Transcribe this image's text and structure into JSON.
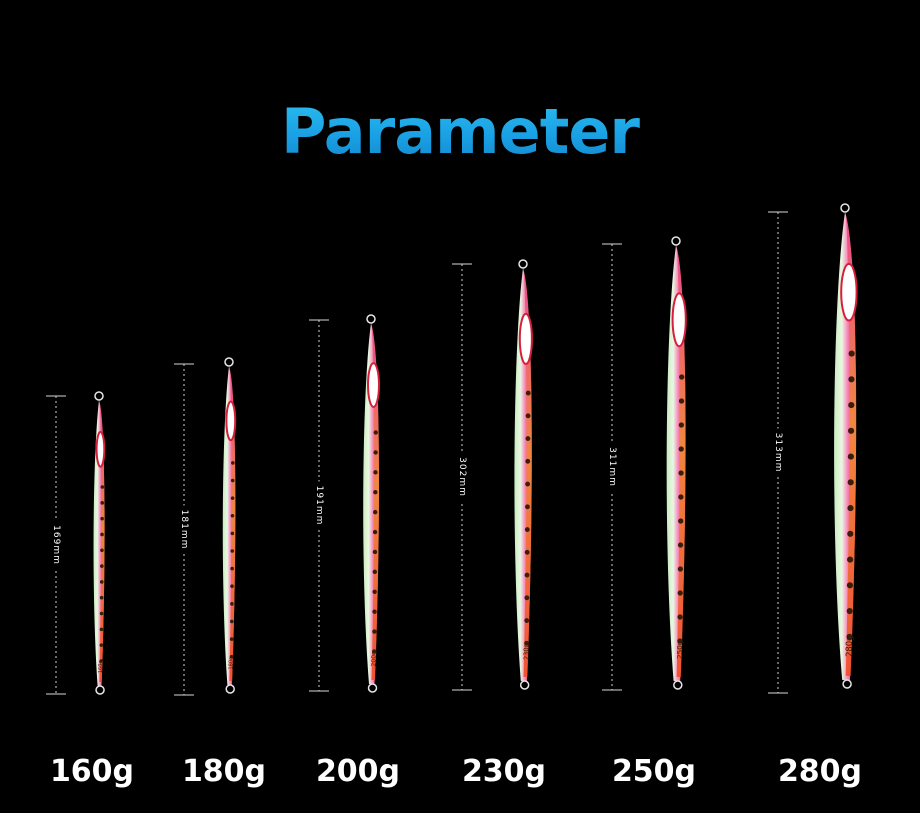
{
  "title": "Parameter",
  "colors": {
    "title": "#1aa0e4",
    "background": "#000000",
    "lure_pink": "#ec3f86",
    "lure_orange": "#f26a2a",
    "lure_glow": "#d8f2cf",
    "text": "#ffffff"
  },
  "lures": [
    {
      "weight": "160g",
      "length": "169mm",
      "tag": "160g"
    },
    {
      "weight": "180g",
      "length": "181mm",
      "tag": "180g"
    },
    {
      "weight": "200g",
      "length": "191mm",
      "tag": "200g"
    },
    {
      "weight": "230g",
      "length": "302mm",
      "tag": "230g"
    },
    {
      "weight": "250g",
      "length": "311mm",
      "tag": "250g"
    },
    {
      "weight": "280g",
      "length": "313mm",
      "tag": "280g"
    }
  ]
}
